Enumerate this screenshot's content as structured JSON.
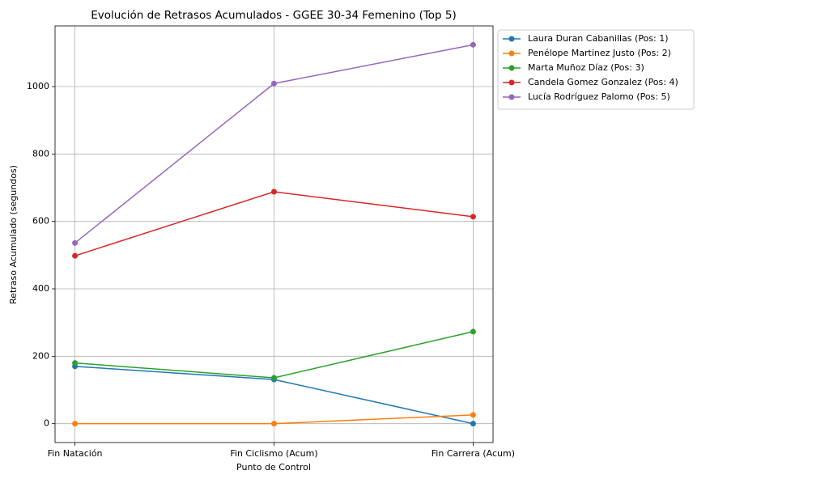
{
  "chart_data": {
    "type": "line",
    "title": "Evolución de Retrasos Acumulados - GGEE 30-34 Femenino (Top 5)",
    "xlabel": "Punto de Control",
    "ylabel": "Retraso Acumulado (segundos)",
    "categories": [
      "Fin Natación",
      "Fin Ciclismo (Acum)",
      "Fin Carrera (Acum)"
    ],
    "series": [
      {
        "name": "Laura Duran Cabanillas (Pos: 1)",
        "color": "#1f77b4",
        "values": [
          170,
          131,
          0
        ]
      },
      {
        "name": "Penélope Martinez Justo (Pos: 2)",
        "color": "#ff7f0e",
        "values": [
          0,
          0,
          26
        ]
      },
      {
        "name": "Marta Muñoz Díaz (Pos: 3)",
        "color": "#2ca02c",
        "values": [
          180,
          136,
          273
        ]
      },
      {
        "name": "Candela Gomez Gonzalez (Pos: 4)",
        "color": "#d62728",
        "values": [
          498,
          688,
          614
        ]
      },
      {
        "name": "Lucía Rodríguez Palomo (Pos: 5)",
        "color": "#9467bd",
        "values": [
          536,
          1009,
          1124
        ]
      }
    ],
    "ylim": [
      -56,
      1180
    ],
    "yticks": [
      0,
      200,
      400,
      600,
      800,
      1000
    ],
    "grid": true,
    "legend": "outside upper right"
  }
}
